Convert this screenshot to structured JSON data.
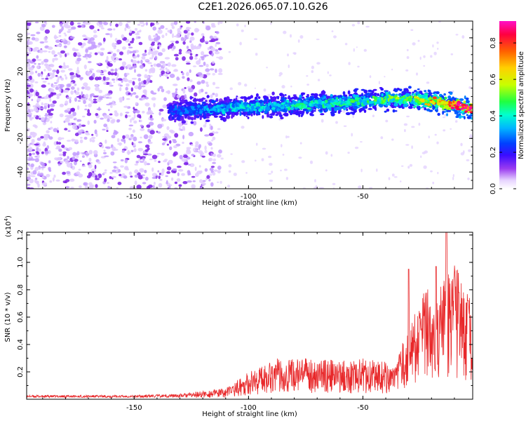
{
  "title": "C2E1.2026.065.07.10.G26",
  "chart_data": [
    {
      "type": "heatmap",
      "xlabel": "Height of straight line (km)",
      "ylabel": "Frequency (Hz)",
      "xlim": [
        -197,
        -2
      ],
      "ylim": [
        -50,
        50
      ],
      "xticks": [
        -150,
        -100,
        -50
      ],
      "yticks": [
        -40,
        -20,
        0,
        20,
        40
      ],
      "colorbar": {
        "label": "Normalized spectral amplitude",
        "range": [
          0.0,
          0.92
        ],
        "ticks": [
          0.0,
          0.2,
          0.4,
          0.6,
          0.8
        ],
        "tick_labels": [
          "0.0",
          "0.2",
          "0.4",
          "0.6",
          "0.8"
        ]
      },
      "noise_region_x": [
        -197,
        -120
      ],
      "signal_band": {
        "x_start": -135,
        "x_end": -2,
        "center_hz": [
          [
            -135,
            -4
          ],
          [
            -110,
            -2
          ],
          [
            -80,
            0
          ],
          [
            -50,
            2
          ],
          [
            -30,
            4
          ],
          [
            -10,
            0
          ],
          [
            -2,
            -3
          ]
        ],
        "amplitude": [
          [
            -135,
            0.15
          ],
          [
            -100,
            0.3
          ],
          [
            -60,
            0.35
          ],
          [
            -30,
            0.45
          ],
          [
            -10,
            0.8
          ],
          [
            -2,
            0.9
          ]
        ]
      }
    },
    {
      "type": "line",
      "xlabel": "Height of straight line (km)",
      "ylabel": "SNR (10 * v/v)",
      "scale_label": "(x10",
      "scale_exp": "4",
      "xlim": [
        -197,
        -2
      ],
      "ylim": [
        0.0,
        1.22
      ],
      "xticks": [
        -150,
        -100,
        -50
      ],
      "yticks": [
        0.2,
        0.4,
        0.6,
        0.8,
        1.0,
        1.2
      ],
      "ytick_labels": [
        "0.2",
        "0.4",
        "0.6",
        "0.8",
        "1.0",
        "1.2"
      ],
      "series": [
        {
          "name": "SNR",
          "color": "#e8282a",
          "envelope": [
            [
              -197,
              0.03
            ],
            [
              -150,
              0.03
            ],
            [
              -130,
              0.04
            ],
            [
              -120,
              0.06
            ],
            [
              -110,
              0.08
            ],
            [
              -105,
              0.14
            ],
            [
              -100,
              0.2
            ],
            [
              -95,
              0.24
            ],
            [
              -90,
              0.3
            ],
            [
              -80,
              0.3
            ],
            [
              -70,
              0.3
            ],
            [
              -60,
              0.28
            ],
            [
              -50,
              0.3
            ],
            [
              -40,
              0.28
            ],
            [
              -36,
              0.22
            ],
            [
              -32,
              0.45
            ],
            [
              -28,
              0.6
            ],
            [
              -25,
              0.75
            ],
            [
              -22,
              0.8
            ],
            [
              -18,
              0.9
            ],
            [
              -15,
              0.85
            ],
            [
              -12,
              0.95
            ],
            [
              -9,
              1.0
            ],
            [
              -6,
              0.8
            ],
            [
              -3,
              0.75
            ],
            [
              -2,
              0.55
            ]
          ],
          "peaks": [
            [
              -30,
              0.95
            ],
            [
              -18,
              0.97
            ],
            [
              -13.5,
              1.22
            ],
            [
              -8,
              0.78
            ],
            [
              -4,
              0.72
            ]
          ]
        }
      ]
    }
  ]
}
